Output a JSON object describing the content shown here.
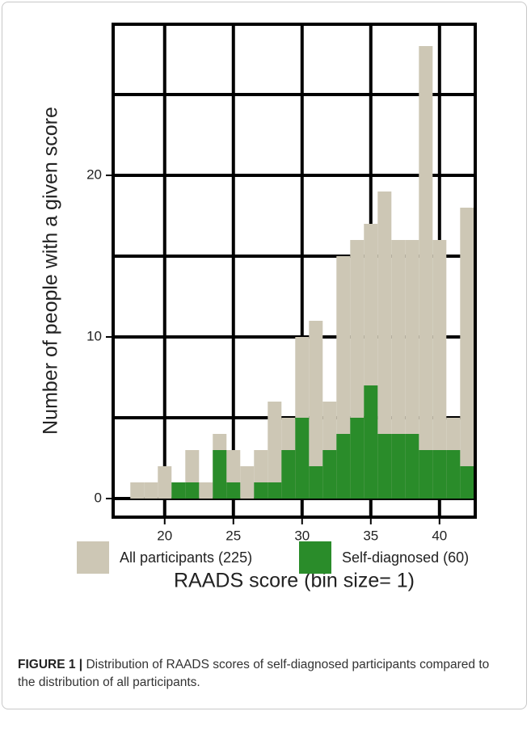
{
  "chart_data": {
    "type": "histogram",
    "xlabel": "RAADS score (bin size= 1)",
    "ylabel": "Number of people with a given score",
    "bins": [
      17.5,
      18.5,
      19.5,
      20.5,
      21.5,
      22.5,
      23.5,
      24.5,
      25.5,
      26.5,
      27.5,
      28.5,
      29.5,
      30.5,
      31.5,
      32.5,
      33.5,
      34.5,
      35.5,
      36.5,
      37.5,
      38.5,
      39.5,
      40.5,
      41.5,
      42.5
    ],
    "series": [
      {
        "name": "All participants (225)",
        "color": "#cdc7b5",
        "values": [
          1,
          1,
          2,
          1,
          3,
          1,
          4,
          3,
          2,
          3,
          6,
          5,
          10,
          11,
          6,
          15,
          16,
          17,
          19,
          16,
          16,
          28,
          16,
          5,
          18
        ]
      },
      {
        "name": "Self-diagnosed (60)",
        "color": "#2a8c2a",
        "values": [
          0,
          0,
          0,
          1,
          1,
          0,
          3,
          1,
          0,
          1,
          1,
          3,
          5,
          2,
          3,
          4,
          5,
          7,
          4,
          4,
          4,
          3,
          3,
          3,
          2
        ]
      }
    ],
    "xlim": [
      16.25,
      42.6
    ],
    "ylim": [
      -1.15,
      29.35
    ],
    "xticks": [
      20,
      25,
      30,
      35,
      40
    ],
    "yticks": [
      0,
      10,
      20
    ],
    "y_minor_ticks": [
      5,
      15,
      25
    ],
    "grid": true,
    "legend": "bottom"
  },
  "caption": {
    "label": "FIGURE 1 |",
    "text": "Distribution of RAADS scores of self-diagnosed participants compared to the distribution of all participants."
  }
}
